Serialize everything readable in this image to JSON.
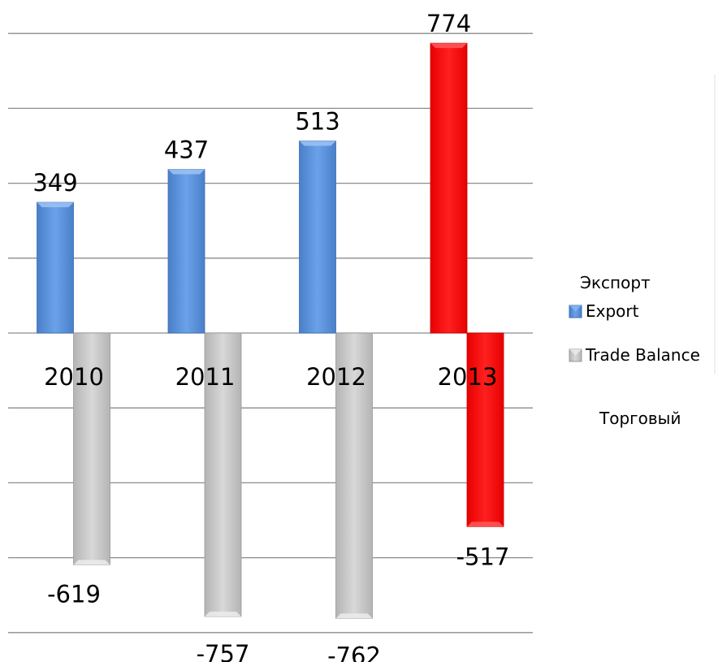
{
  "chart_data": {
    "type": "bar",
    "categories": [
      "2010",
      "2011",
      "2012",
      "2013"
    ],
    "series": [
      {
        "name": "Export",
        "values": [
          349,
          437,
          513,
          774
        ],
        "color": "#5b92dc",
        "highlight": [
          false,
          false,
          false,
          true
        ],
        "highlight_color": "#ff0000"
      },
      {
        "name": "Trade Balance",
        "values": [
          -619,
          -757,
          -762,
          -517
        ],
        "color": "#c8c8c8",
        "highlight": [
          false,
          false,
          false,
          true
        ],
        "highlight_color": "#ff0000"
      }
    ],
    "ylim": [
      -800,
      800
    ],
    "grid": true,
    "legend": "right",
    "annotations": [
      "Экспорт",
      "Торговый"
    ]
  }
}
